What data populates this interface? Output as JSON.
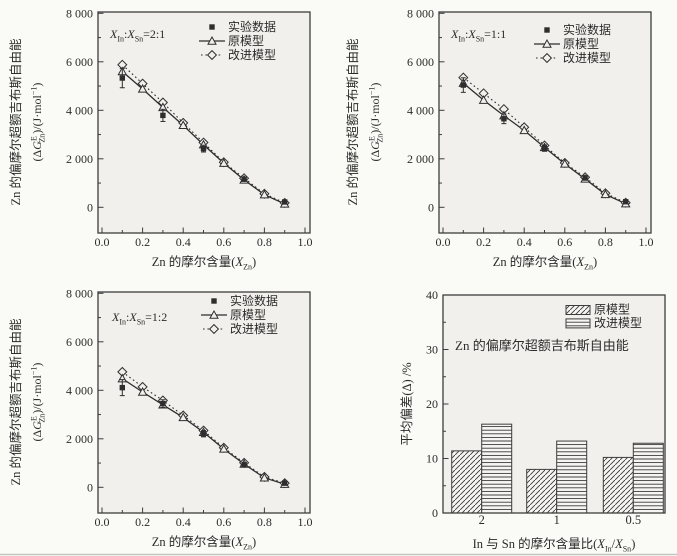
{
  "figure": {
    "colors": {
      "page_bg": "#fafaf7",
      "plot_bg": "#f1f0ed",
      "ink": "#2e2e2e",
      "axis": "#3d3d3d",
      "bottom_rule": "#c6c6c0"
    }
  },
  "chart_data": [
    {
      "type": "line",
      "name": "zn-excess-gibbs-2-1",
      "inset_text": "XIn:XSn=2:1",
      "inset_rich": [
        [
          "X",
          "i"
        ],
        [
          "In",
          "sub"
        ],
        [
          ":",
          "n"
        ],
        [
          "X",
          "i"
        ],
        [
          "Sn",
          "sub"
        ],
        [
          "=2:1",
          "n"
        ]
      ],
      "legend": [
        "实验数据",
        "原模型",
        "改进模型"
      ],
      "xlabel_text": "Zn 的摩尔含量(XZn)",
      "xlabel_rich": [
        [
          "Zn 的摩尔含量(",
          "n"
        ],
        [
          "X",
          "i"
        ],
        [
          "Zn",
          "sub"
        ],
        [
          ")",
          "n"
        ]
      ],
      "ylabel_line1": "Zn 的偏摩尔超额吉布斯自由能",
      "ylabel_line2_text": "(ΔGZnE)/(J·mol−1)",
      "ylabel_line2_rich": [
        [
          "(Δ",
          "n"
        ],
        [
          "G",
          "i"
        ],
        [
          "E",
          "sup"
        ],
        [
          "Zn",
          "subback"
        ],
        [
          ")/(J·mol",
          "n"
        ],
        [
          "−1",
          "sup"
        ],
        [
          ")",
          "n"
        ]
      ],
      "xlim": [
        0,
        1
      ],
      "ylim": [
        -1000,
        8000
      ],
      "xticks": [
        {
          "v": 0.0,
          "t": "0.0"
        },
        {
          "v": 0.2,
          "t": "0.2"
        },
        {
          "v": 0.4,
          "t": "0.4"
        },
        {
          "v": 0.6,
          "t": "0.6"
        },
        {
          "v": 0.8,
          "t": "0.8"
        },
        {
          "v": 1.0,
          "t": "1.0"
        }
      ],
      "yticks": [
        {
          "v": 0,
          "t": "0"
        },
        {
          "v": 2000,
          "t": "2 000"
        },
        {
          "v": 4000,
          "t": "4 000"
        },
        {
          "v": 6000,
          "t": "6 000"
        },
        {
          "v": 8000,
          "t": "8 000"
        }
      ],
      "xminor": [
        0.1,
        0.3,
        0.5,
        0.7,
        0.9
      ],
      "yminor": [
        1000,
        3000,
        5000,
        7000
      ],
      "series": [
        {
          "name": "实验数据",
          "marker": "filled-square",
          "line": "none",
          "x": [
            0.1,
            0.3,
            0.5,
            0.7,
            0.9
          ],
          "y": [
            5330,
            3790,
            2420,
            1160,
            220
          ],
          "yerr": [
            400,
            250,
            140,
            90,
            60
          ]
        },
        {
          "name": "原模型",
          "marker": "open-triangle",
          "line": "solid",
          "x": [
            0.1,
            0.2,
            0.3,
            0.4,
            0.5,
            0.6,
            0.7,
            0.8,
            0.9
          ],
          "y": [
            5600,
            4880,
            4120,
            3380,
            2580,
            1820,
            1130,
            520,
            140
          ]
        },
        {
          "name": "改进模型",
          "marker": "open-diamond",
          "line": "dotted",
          "x": [
            0.1,
            0.2,
            0.3,
            0.4,
            0.5,
            0.6,
            0.7,
            0.8,
            0.9
          ],
          "y": [
            5880,
            5100,
            4320,
            3480,
            2670,
            1860,
            1200,
            560,
            180
          ]
        }
      ]
    },
    {
      "type": "line",
      "name": "zn-excess-gibbs-1-1",
      "inset_text": "XIn:XSn=1:1",
      "inset_rich": [
        [
          "X",
          "i"
        ],
        [
          "In",
          "sub"
        ],
        [
          ":",
          "n"
        ],
        [
          "X",
          "i"
        ],
        [
          "Sn",
          "sub"
        ],
        [
          "=1:1",
          "n"
        ]
      ],
      "legend": [
        "实验数据",
        "原模型",
        "改进模型"
      ],
      "xlabel_text": "Zn 的摩尔含量(XZn)",
      "xlabel_rich": [
        [
          "Zn 的摩尔含量(",
          "n"
        ],
        [
          "X",
          "i"
        ],
        [
          "Zn",
          "sub"
        ],
        [
          ")",
          "n"
        ]
      ],
      "ylabel_line1": "Zn 的偏摩尔超额吉布斯自由能",
      "ylabel_line2_text": "(ΔGZnE)/(J·mol−1)",
      "ylabel_line2_rich": [
        [
          "(Δ",
          "n"
        ],
        [
          "G",
          "i"
        ],
        [
          "E",
          "sup"
        ],
        [
          "Zn",
          "subback"
        ],
        [
          ")/(J·mol",
          "n"
        ],
        [
          "−1",
          "sup"
        ],
        [
          ")",
          "n"
        ]
      ],
      "xlim": [
        0,
        1
      ],
      "ylim": [
        -1000,
        8000
      ],
      "xticks": [
        {
          "v": 0.0,
          "t": "0.0"
        },
        {
          "v": 0.2,
          "t": "0.2"
        },
        {
          "v": 0.4,
          "t": "0.4"
        },
        {
          "v": 0.6,
          "t": "0.6"
        },
        {
          "v": 0.8,
          "t": "0.8"
        },
        {
          "v": 1.0,
          "t": "1.0"
        }
      ],
      "yticks": [
        {
          "v": 0,
          "t": "0"
        },
        {
          "v": 2000,
          "t": "2 000"
        },
        {
          "v": 4000,
          "t": "4 000"
        },
        {
          "v": 6000,
          "t": "6 000"
        },
        {
          "v": 8000,
          "t": "8 000"
        }
      ],
      "xminor": [
        0.1,
        0.3,
        0.5,
        0.7,
        0.9
      ],
      "yminor": [
        1000,
        3000,
        5000,
        7000
      ],
      "series": [
        {
          "name": "实验数据",
          "marker": "filled-square",
          "line": "none",
          "x": [
            0.1,
            0.3,
            0.5,
            0.7,
            0.9
          ],
          "y": [
            5040,
            3650,
            2440,
            1210,
            230
          ],
          "yerr": [
            300,
            200,
            130,
            90,
            60
          ]
        },
        {
          "name": "原模型",
          "marker": "open-triangle",
          "line": "solid",
          "x": [
            0.1,
            0.2,
            0.3,
            0.4,
            0.5,
            0.6,
            0.7,
            0.8,
            0.9
          ],
          "y": [
            5120,
            4420,
            3780,
            3170,
            2470,
            1790,
            1170,
            530,
            150
          ]
        },
        {
          "name": "改进模型",
          "marker": "open-diamond",
          "line": "dotted",
          "x": [
            0.1,
            0.2,
            0.3,
            0.4,
            0.5,
            0.6,
            0.7,
            0.8,
            0.9
          ],
          "y": [
            5350,
            4700,
            4050,
            3300,
            2550,
            1830,
            1240,
            580,
            190
          ]
        }
      ]
    },
    {
      "type": "line",
      "name": "zn-excess-gibbs-1-2",
      "inset_text": "XIn:XSn=1:2",
      "inset_rich": [
        [
          "X",
          "i"
        ],
        [
          "In",
          "sub"
        ],
        [
          ":",
          "n"
        ],
        [
          "X",
          "i"
        ],
        [
          "Sn",
          "sub"
        ],
        [
          "=1:2",
          "n"
        ]
      ],
      "legend": [
        "实验数据",
        "原模型",
        "改进模型"
      ],
      "xlabel_text": "Zn 的摩尔含量(XZn)",
      "xlabel_rich": [
        [
          "Zn 的摩尔含量(",
          "n"
        ],
        [
          "X",
          "i"
        ],
        [
          "Zn",
          "sub"
        ],
        [
          ")",
          "n"
        ]
      ],
      "ylabel_line1": "Zn 的偏摩尔超额吉布斯自由能",
      "ylabel_line2_text": "(ΔGZnE)/(J·mol−1)",
      "ylabel_line2_rich": [
        [
          "(Δ",
          "n"
        ],
        [
          "G",
          "i"
        ],
        [
          "E",
          "sup"
        ],
        [
          "Zn",
          "subback"
        ],
        [
          ")/(J·mol",
          "n"
        ],
        [
          "−1",
          "sup"
        ],
        [
          ")",
          "n"
        ]
      ],
      "xlim": [
        0,
        1
      ],
      "ylim": [
        -1000,
        8000
      ],
      "xticks": [
        {
          "v": 0.0,
          "t": "0.0"
        },
        {
          "v": 0.2,
          "t": "0.2"
        },
        {
          "v": 0.4,
          "t": "0.4"
        },
        {
          "v": 0.6,
          "t": "0.6"
        },
        {
          "v": 0.8,
          "t": "0.8"
        },
        {
          "v": 1.0,
          "t": "1.0"
        }
      ],
      "yticks": [
        {
          "v": 0,
          "t": "0"
        },
        {
          "v": 2000,
          "t": "2 000"
        },
        {
          "v": 4000,
          "t": "4 000"
        },
        {
          "v": 6000,
          "t": "6 000"
        },
        {
          "v": 8000,
          "t": "8 000"
        }
      ],
      "xminor": [
        0.1,
        0.3,
        0.5,
        0.7,
        0.9
      ],
      "yminor": [
        1000,
        3000,
        5000,
        7000
      ],
      "series": [
        {
          "name": "实验数据",
          "marker": "filled-square",
          "line": "none",
          "x": [
            0.1,
            0.3,
            0.5,
            0.7,
            0.9
          ],
          "y": [
            4110,
            3450,
            2210,
            930,
            170
          ],
          "yerr": [
            330,
            160,
            130,
            90,
            60
          ]
        },
        {
          "name": "原模型",
          "marker": "open-triangle",
          "line": "solid",
          "x": [
            0.1,
            0.2,
            0.3,
            0.4,
            0.5,
            0.6,
            0.7,
            0.8,
            0.9
          ],
          "y": [
            4480,
            3930,
            3400,
            2880,
            2270,
            1580,
            960,
            390,
            130
          ]
        },
        {
          "name": "改进模型",
          "marker": "open-diamond",
          "line": "dotted",
          "x": [
            0.1,
            0.2,
            0.3,
            0.4,
            0.5,
            0.6,
            0.7,
            0.8,
            0.9
          ],
          "y": [
            4760,
            4140,
            3580,
            2960,
            2340,
            1630,
            1010,
            430,
            170
          ]
        }
      ]
    },
    {
      "type": "bar",
      "name": "average-deviation",
      "annotation": "Zn 的偏摩尔超额吉布斯自由能",
      "ylabel": "平均偏差(Δ) /%",
      "xlabel_text": "In 与 Sn 的摩尔含量比(XIn/XSn)",
      "xlabel_rich": [
        [
          "In 与 Sn 的摩尔含量比(",
          "n"
        ],
        [
          "X",
          "i"
        ],
        [
          "In",
          "sub"
        ],
        [
          "/",
          "n"
        ],
        [
          "X",
          "i"
        ],
        [
          "Sn",
          "sub"
        ],
        [
          ")",
          "n"
        ]
      ],
      "categories": [
        "2",
        "1",
        "0.5"
      ],
      "series": [
        {
          "name": "原模型",
          "hatch": "diagonal",
          "values": [
            11.4,
            8.0,
            10.2
          ]
        },
        {
          "name": "改进模型",
          "hatch": "horizontal",
          "values": [
            16.3,
            13.2,
            12.8
          ]
        }
      ],
      "ylim": [
        0,
        40
      ],
      "yticks": [
        {
          "v": 0,
          "t": "0"
        },
        {
          "v": 10,
          "t": "10"
        },
        {
          "v": 20,
          "t": "20"
        },
        {
          "v": 30,
          "t": "30"
        },
        {
          "v": 40,
          "t": "40"
        }
      ],
      "yminor": [
        5,
        15,
        25,
        35
      ],
      "legend_position": "top-right"
    }
  ]
}
